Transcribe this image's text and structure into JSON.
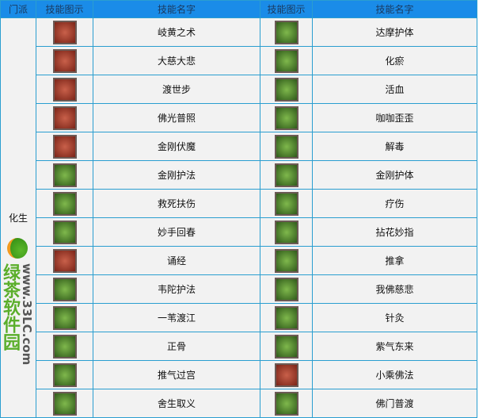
{
  "headers": [
    "门派",
    "技能图示",
    "技能名字",
    "技能图示",
    "技能名字"
  ],
  "sect": "化生",
  "rows": [
    {
      "left": "岐黄之术",
      "left_icon": "red",
      "right": "达摩护体",
      "right_icon": "green"
    },
    {
      "left": "大慈大悲",
      "left_icon": "red",
      "right": "化瘀",
      "right_icon": "green"
    },
    {
      "left": "渡世步",
      "left_icon": "red",
      "right": "活血",
      "right_icon": "green"
    },
    {
      "left": "佛光普照",
      "left_icon": "red",
      "right": "咖咖歪歪",
      "right_icon": "green"
    },
    {
      "left": "金刚伏魔",
      "left_icon": "red",
      "right": "解毒",
      "right_icon": "green"
    },
    {
      "left": "金刚护法",
      "left_icon": "green",
      "right": "金刚护体",
      "right_icon": "green"
    },
    {
      "left": "救死扶伤",
      "left_icon": "green",
      "right": "疗伤",
      "right_icon": "green"
    },
    {
      "left": "妙手回春",
      "left_icon": "green",
      "right": "拈花妙指",
      "right_icon": "green"
    },
    {
      "left": "诵经",
      "left_icon": "red",
      "right": "推拿",
      "right_icon": "green"
    },
    {
      "left": "韦陀护法",
      "left_icon": "green",
      "right": "我佛慈悲",
      "right_icon": "green"
    },
    {
      "left": "一苇渡江",
      "left_icon": "green",
      "right": "针灸",
      "right_icon": "green"
    },
    {
      "left": "正骨",
      "left_icon": "green",
      "right": "紫气东来",
      "right_icon": "green"
    },
    {
      "left": "推气过宫",
      "left_icon": "green",
      "right": "小乘佛法",
      "right_icon": "red"
    },
    {
      "left": "舍生取义",
      "left_icon": "green",
      "right": "佛门普渡",
      "right_icon": "green"
    }
  ],
  "watermark": {
    "name": "绿茶软件园",
    "url": "www.33LC.com"
  }
}
